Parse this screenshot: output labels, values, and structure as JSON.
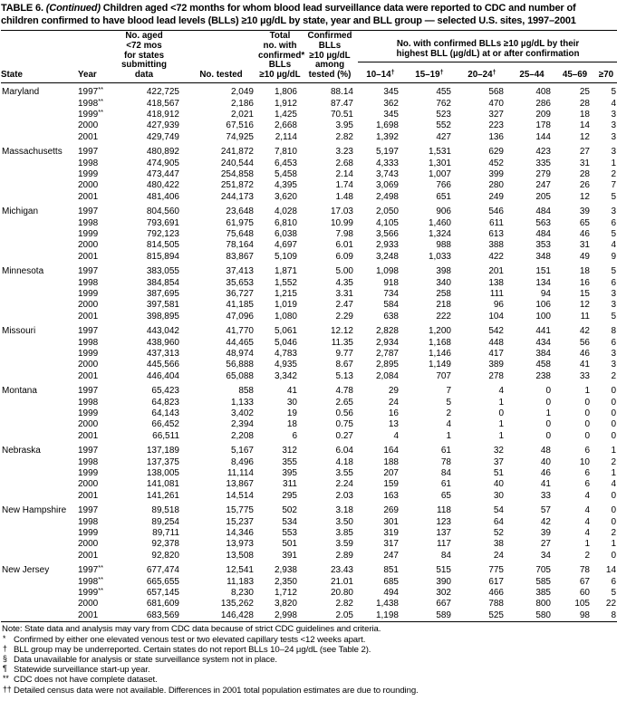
{
  "title": {
    "label": "TABLE 6.",
    "continued": "(Continued)",
    "text": "Children aged <72 months for whom blood lead surveillance data were reported to CDC and number of children confirmed to have blood lead levels (BLLs) ≥10 µg/dL by state, year and BLL group — selected U.S. sites, 1997–2001"
  },
  "header": {
    "state": "State",
    "year": "Year",
    "population": "No. aged\n<72 mos\nfor states\nsubmitting\ndata",
    "tested": "No. tested",
    "total_confirmed": "Total\nno. with\nconfirmed*\nBLLs\n≥10 µg/dL",
    "pct_confirmed": "Confirmed\nBLLs\n≥10 µg/dL\namong\ntested (%)",
    "group": "No. with confirmed BLLs ≥10 µg/dL by their\nhighest BLL (µg/dL) at or after confirmation",
    "bll_groups": [
      {
        "label": "10–14",
        "sup": "†"
      },
      {
        "label": "15–19",
        "sup": "†"
      },
      {
        "label": "20–24",
        "sup": "†"
      },
      {
        "label": "25–44",
        "sup": ""
      },
      {
        "label": "45–69",
        "sup": ""
      },
      {
        "label": "≥70",
        "sup": ""
      }
    ]
  },
  "states": [
    {
      "name": "Maryland",
      "rows": [
        {
          "year": "1997",
          "ysup": "**",
          "values": [
            "422,725",
            "2,049",
            "1,806",
            "88.14",
            "345",
            "455",
            "568",
            "408",
            "25",
            "5"
          ]
        },
        {
          "year": "1998",
          "ysup": "**",
          "values": [
            "418,567",
            "2,186",
            "1,912",
            "87.47",
            "362",
            "762",
            "470",
            "286",
            "28",
            "4"
          ]
        },
        {
          "year": "1999",
          "ysup": "**",
          "values": [
            "418,912",
            "2,021",
            "1,425",
            "70.51",
            "345",
            "523",
            "327",
            "209",
            "18",
            "3"
          ]
        },
        {
          "year": "2000",
          "ysup": "",
          "values": [
            "427,939",
            "67,516",
            "2,668",
            "3.95",
            "1,698",
            "552",
            "223",
            "178",
            "14",
            "3"
          ]
        },
        {
          "year": "2001",
          "ysup": "",
          "values": [
            "429,749",
            "74,925",
            "2,114",
            "2.82",
            "1,392",
            "427",
            "136",
            "144",
            "12",
            "3"
          ]
        }
      ]
    },
    {
      "name": "Massachusetts",
      "rows": [
        {
          "year": "1997",
          "ysup": "",
          "values": [
            "480,892",
            "241,872",
            "7,810",
            "3.23",
            "5,197",
            "1,531",
            "629",
            "423",
            "27",
            "3"
          ]
        },
        {
          "year": "1998",
          "ysup": "",
          "values": [
            "474,905",
            "240,544",
            "6,453",
            "2.68",
            "4,333",
            "1,301",
            "452",
            "335",
            "31",
            "1"
          ]
        },
        {
          "year": "1999",
          "ysup": "",
          "values": [
            "473,447",
            "254,858",
            "5,458",
            "2.14",
            "3,743",
            "1,007",
            "399",
            "279",
            "28",
            "2"
          ]
        },
        {
          "year": "2000",
          "ysup": "",
          "values": [
            "480,422",
            "251,872",
            "4,395",
            "1.74",
            "3,069",
            "766",
            "280",
            "247",
            "26",
            "7"
          ]
        },
        {
          "year": "2001",
          "ysup": "",
          "values": [
            "481,406",
            "244,173",
            "3,620",
            "1.48",
            "2,498",
            "651",
            "249",
            "205",
            "12",
            "5"
          ]
        }
      ]
    },
    {
      "name": "Michigan",
      "rows": [
        {
          "year": "1997",
          "ysup": "",
          "values": [
            "804,560",
            "23,648",
            "4,028",
            "17.03",
            "2,050",
            "906",
            "546",
            "484",
            "39",
            "3"
          ]
        },
        {
          "year": "1998",
          "ysup": "",
          "values": [
            "793,691",
            "61,975",
            "6,810",
            "10.99",
            "4,105",
            "1,460",
            "611",
            "563",
            "65",
            "6"
          ]
        },
        {
          "year": "1999",
          "ysup": "",
          "values": [
            "792,123",
            "75,648",
            "6,038",
            "7.98",
            "3,566",
            "1,324",
            "613",
            "484",
            "46",
            "5"
          ]
        },
        {
          "year": "2000",
          "ysup": "",
          "values": [
            "814,505",
            "78,164",
            "4,697",
            "6.01",
            "2,933",
            "988",
            "388",
            "353",
            "31",
            "4"
          ]
        },
        {
          "year": "2001",
          "ysup": "",
          "values": [
            "815,894",
            "83,867",
            "5,109",
            "6.09",
            "3,248",
            "1,033",
            "422",
            "348",
            "49",
            "9"
          ]
        }
      ]
    },
    {
      "name": "Minnesota",
      "rows": [
        {
          "year": "1997",
          "ysup": "",
          "values": [
            "383,055",
            "37,413",
            "1,871",
            "5.00",
            "1,098",
            "398",
            "201",
            "151",
            "18",
            "5"
          ]
        },
        {
          "year": "1998",
          "ysup": "",
          "values": [
            "384,854",
            "35,653",
            "1,552",
            "4.35",
            "918",
            "340",
            "138",
            "134",
            "16",
            "6"
          ]
        },
        {
          "year": "1999",
          "ysup": "",
          "values": [
            "387,695",
            "36,727",
            "1,215",
            "3.31",
            "734",
            "258",
            "111",
            "94",
            "15",
            "3"
          ]
        },
        {
          "year": "2000",
          "ysup": "",
          "values": [
            "397,581",
            "41,185",
            "1,019",
            "2.47",
            "584",
            "218",
            "96",
            "106",
            "12",
            "3"
          ]
        },
        {
          "year": "2001",
          "ysup": "",
          "values": [
            "398,895",
            "47,096",
            "1,080",
            "2.29",
            "638",
            "222",
            "104",
            "100",
            "11",
            "5"
          ]
        }
      ]
    },
    {
      "name": "Missouri",
      "rows": [
        {
          "year": "1997",
          "ysup": "",
          "values": [
            "443,042",
            "41,770",
            "5,061",
            "12.12",
            "2,828",
            "1,200",
            "542",
            "441",
            "42",
            "8"
          ]
        },
        {
          "year": "1998",
          "ysup": "",
          "values": [
            "438,960",
            "44,465",
            "5,046",
            "11.35",
            "2,934",
            "1,168",
            "448",
            "434",
            "56",
            "6"
          ]
        },
        {
          "year": "1999",
          "ysup": "",
          "values": [
            "437,313",
            "48,974",
            "4,783",
            "9.77",
            "2,787",
            "1,146",
            "417",
            "384",
            "46",
            "3"
          ]
        },
        {
          "year": "2000",
          "ysup": "",
          "values": [
            "445,566",
            "56,888",
            "4,935",
            "8.67",
            "2,895",
            "1,149",
            "389",
            "458",
            "41",
            "3"
          ]
        },
        {
          "year": "2001",
          "ysup": "",
          "values": [
            "446,404",
            "65,088",
            "3,342",
            "5.13",
            "2,084",
            "707",
            "278",
            "238",
            "33",
            "2"
          ]
        }
      ]
    },
    {
      "name": "Montana",
      "rows": [
        {
          "year": "1997",
          "ysup": "",
          "values": [
            "65,423",
            "858",
            "41",
            "4.78",
            "29",
            "7",
            "4",
            "0",
            "1",
            "0"
          ]
        },
        {
          "year": "1998",
          "ysup": "",
          "values": [
            "64,823",
            "1,133",
            "30",
            "2.65",
            "24",
            "5",
            "1",
            "0",
            "0",
            "0"
          ]
        },
        {
          "year": "1999",
          "ysup": "",
          "values": [
            "64,143",
            "3,402",
            "19",
            "0.56",
            "16",
            "2",
            "0",
            "1",
            "0",
            "0"
          ]
        },
        {
          "year": "2000",
          "ysup": "",
          "values": [
            "66,452",
            "2,394",
            "18",
            "0.75",
            "13",
            "4",
            "1",
            "0",
            "0",
            "0"
          ]
        },
        {
          "year": "2001",
          "ysup": "",
          "values": [
            "66,511",
            "2,208",
            "6",
            "0.27",
            "4",
            "1",
            "1",
            "0",
            "0",
            "0"
          ]
        }
      ]
    },
    {
      "name": "Nebraska",
      "rows": [
        {
          "year": "1997",
          "ysup": "",
          "values": [
            "137,189",
            "5,167",
            "312",
            "6.04",
            "164",
            "61",
            "32",
            "48",
            "6",
            "1"
          ]
        },
        {
          "year": "1998",
          "ysup": "",
          "values": [
            "137,375",
            "8,496",
            "355",
            "4.18",
            "188",
            "78",
            "37",
            "40",
            "10",
            "2"
          ]
        },
        {
          "year": "1999",
          "ysup": "",
          "values": [
            "138,005",
            "11,114",
            "395",
            "3.55",
            "207",
            "84",
            "51",
            "46",
            "6",
            "1"
          ]
        },
        {
          "year": "2000",
          "ysup": "",
          "values": [
            "141,081",
            "13,867",
            "311",
            "2.24",
            "159",
            "61",
            "40",
            "41",
            "6",
            "4"
          ]
        },
        {
          "year": "2001",
          "ysup": "",
          "values": [
            "141,261",
            "14,514",
            "295",
            "2.03",
            "163",
            "65",
            "30",
            "33",
            "4",
            "0"
          ]
        }
      ]
    },
    {
      "name": "New Hampshire",
      "rows": [
        {
          "year": "1997",
          "ysup": "",
          "values": [
            "89,518",
            "15,775",
            "502",
            "3.18",
            "269",
            "118",
            "54",
            "57",
            "4",
            "0"
          ]
        },
        {
          "year": "1998",
          "ysup": "",
          "values": [
            "89,254",
            "15,237",
            "534",
            "3.50",
            "301",
            "123",
            "64",
            "42",
            "4",
            "0"
          ]
        },
        {
          "year": "1999",
          "ysup": "",
          "values": [
            "89,711",
            "14,346",
            "553",
            "3.85",
            "319",
            "137",
            "52",
            "39",
            "4",
            "2"
          ]
        },
        {
          "year": "2000",
          "ysup": "",
          "values": [
            "92,378",
            "13,973",
            "501",
            "3.59",
            "317",
            "117",
            "38",
            "27",
            "1",
            "1"
          ]
        },
        {
          "year": "2001",
          "ysup": "",
          "values": [
            "92,820",
            "13,508",
            "391",
            "2.89",
            "247",
            "84",
            "24",
            "34",
            "2",
            "0"
          ]
        }
      ]
    },
    {
      "name": "New Jersey",
      "rows": [
        {
          "year": "1997",
          "ysup": "**",
          "values": [
            "677,474",
            "12,541",
            "2,938",
            "23.43",
            "851",
            "515",
            "775",
            "705",
            "78",
            "14"
          ]
        },
        {
          "year": "1998",
          "ysup": "**",
          "values": [
            "665,655",
            "11,183",
            "2,350",
            "21.01",
            "685",
            "390",
            "617",
            "585",
            "67",
            "6"
          ]
        },
        {
          "year": "1999",
          "ysup": "**",
          "values": [
            "657,145",
            "8,230",
            "1,712",
            "20.80",
            "494",
            "302",
            "466",
            "385",
            "60",
            "5"
          ]
        },
        {
          "year": "2000",
          "ysup": "",
          "values": [
            "681,609",
            "135,262",
            "3,820",
            "2.82",
            "1,438",
            "667",
            "788",
            "800",
            "105",
            "22"
          ]
        },
        {
          "year": "2001",
          "ysup": "",
          "values": [
            "683,569",
            "146,428",
            "2,998",
            "2.05",
            "1,198",
            "589",
            "525",
            "580",
            "98",
            "8"
          ]
        }
      ]
    }
  ],
  "footnotes": {
    "note": "Note: State data and analysis may vary from CDC data because of strict CDC guidelines and criteria.",
    "items": [
      {
        "marker": "*",
        "text": "Confirmed by either one elevated venous test or two elevated capillary tests <12 weeks apart."
      },
      {
        "marker": "†",
        "text": "BLL group may be underreported. Certain states do not report BLLs 10–24 µg/dL (see Table 2)."
      },
      {
        "marker": "§",
        "text": "Data unavailable for analysis or state surveillance system not in place."
      },
      {
        "marker": "¶",
        "text": "Statewide surveillance start-up year."
      },
      {
        "marker": "**",
        "text": "CDC does not have complete dataset."
      },
      {
        "marker": "††",
        "text": "Detailed census data were not available. Differences in 2001 total population estimates are due to rounding."
      }
    ]
  }
}
